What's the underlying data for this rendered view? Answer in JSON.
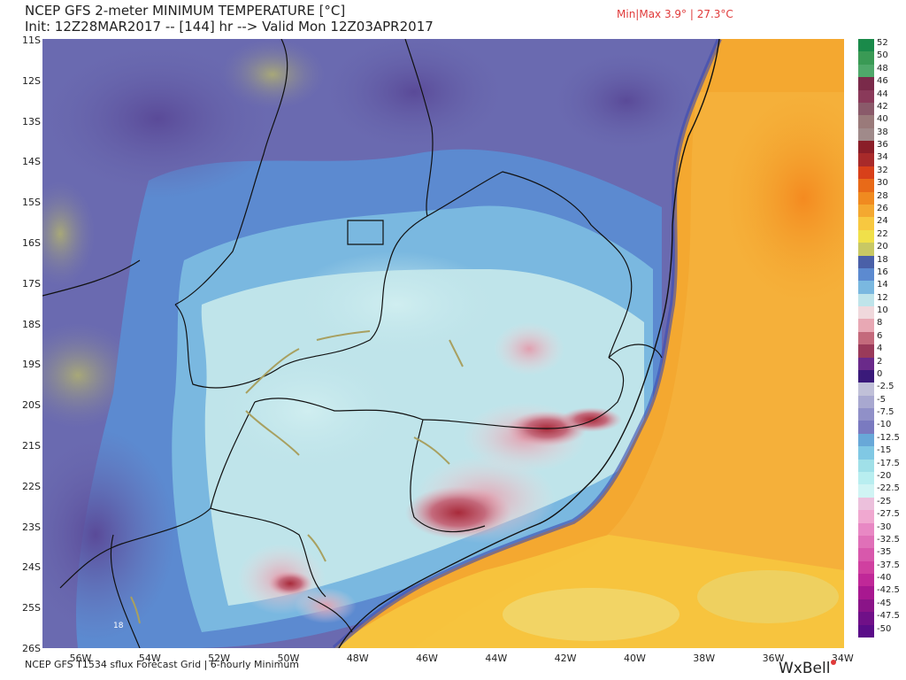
{
  "header": {
    "title": "NCEP GFS 2-meter MINIMUM TEMPERATURE [°C]",
    "init_line": "Init: 12Z28MAR2017 -- [144] hr --> Valid Mon 12Z03APR2017",
    "minmax": "Min|Max 3.9° | 27.3°C"
  },
  "axes": {
    "latitudes": [
      "11S",
      "12S",
      "13S",
      "14S",
      "15S",
      "16S",
      "17S",
      "18S",
      "19S",
      "20S",
      "21S",
      "22S",
      "23S",
      "24S",
      "25S",
      "26S"
    ],
    "longitudes": [
      "56W",
      "54W",
      "52W",
      "50W",
      "48W",
      "46W",
      "44W",
      "42W",
      "40W",
      "38W",
      "36W",
      "34W"
    ]
  },
  "station_label": "18",
  "footer": "NCEP GFS T1534 sflux Forecast Grid | 6-hourly Minimum",
  "brand": "WxBell",
  "colorbar": {
    "labels": [
      "52",
      "50",
      "48",
      "46",
      "44",
      "42",
      "40",
      "38",
      "36",
      "34",
      "32",
      "30",
      "28",
      "26",
      "24",
      "22",
      "20",
      "18",
      "16",
      "14",
      "12",
      "10",
      "8",
      "6",
      "4",
      "2",
      "0",
      "-2.5",
      "-5",
      "-7.5",
      "-10",
      "-12.5",
      "-15",
      "-17.5",
      "-20",
      "-22.5",
      "-25",
      "-27.5",
      "-30",
      "-32.5",
      "-35",
      "-37.5",
      "-40",
      "-42.5",
      "-45",
      "-47.5",
      "-50"
    ],
    "colors": [
      "#1a8a4a",
      "#3a9a55",
      "#4fa86a",
      "#7a2a4a",
      "#8a3a5a",
      "#8a5a6a",
      "#9a7a7a",
      "#a08a8a",
      "#8a1e28",
      "#a82a2a",
      "#d8401a",
      "#e86a18",
      "#f08a20",
      "#f4a830",
      "#f7c840",
      "#f0e04a",
      "#c8c864",
      "#4a60a8",
      "#5c8ad0",
      "#7ab8e0",
      "#bfe4ea",
      "#f0d8dc",
      "#e8a8b4",
      "#c46a7c",
      "#9a3a5a",
      "#6a2a8a",
      "#3a1a7a",
      "#c0c0d8",
      "#a8a8d0",
      "#9090c8",
      "#7a7ac0",
      "#68a8d8",
      "#80c8e4",
      "#a0e0e8",
      "#b8eef0",
      "#d0f4f4",
      "#ecc0dc",
      "#f0a8d0",
      "#e888c4",
      "#e070b8",
      "#d858ac",
      "#d040a0",
      "#c02898",
      "#a81890",
      "#8a1488",
      "#701088",
      "#5a0c88"
    ]
  }
}
